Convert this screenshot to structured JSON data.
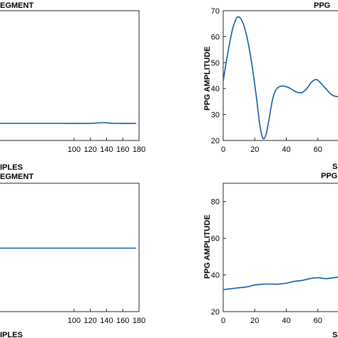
{
  "colors": {
    "series": "#0e5ca8",
    "axis": "#262626"
  },
  "chart_data": [
    {
      "type": "line",
      "title": "EGMENT",
      "xlabel": "IPLES",
      "ylabel": "",
      "xlim": [
        0,
        180
      ],
      "xticks": [
        100,
        120,
        140,
        160,
        180
      ],
      "yticks": [],
      "grid": false,
      "series": [
        {
          "x": [
            0,
            40,
            80,
            120,
            135,
            150,
            176
          ],
          "y": [
            0,
            0,
            0,
            0,
            0.01,
            0,
            0
          ]
        }
      ]
    },
    {
      "type": "line",
      "title": "PPG",
      "xlabel": "S",
      "ylabel": "PPG AMPLITUDE",
      "xlim": [
        0,
        80
      ],
      "ylim": [
        20,
        70
      ],
      "xticks": [
        0,
        20,
        40,
        60
      ],
      "yticks": [
        20,
        30,
        40,
        50,
        60,
        70
      ],
      "grid": false,
      "series": [
        {
          "x": [
            0,
            3,
            6,
            9,
            12,
            15,
            18,
            21,
            23,
            25,
            27,
            29,
            31,
            33,
            35,
            38,
            41,
            44,
            47,
            50,
            53,
            56,
            59,
            62,
            65,
            68,
            71,
            74,
            77,
            80
          ],
          "y": [
            43,
            54,
            63,
            67.5,
            66,
            60,
            50,
            37,
            27,
            21,
            22,
            28,
            35,
            39,
            40.5,
            41,
            40.5,
            39.5,
            38.5,
            38.5,
            40,
            42.5,
            43.5,
            42,
            40,
            38,
            37,
            37,
            37.5,
            37.5
          ]
        }
      ]
    },
    {
      "type": "line",
      "title": "EGMENT",
      "xlabel": "IPLES",
      "ylabel": "",
      "xlim": [
        0,
        180
      ],
      "xticks": [
        100,
        120,
        140,
        160,
        180
      ],
      "yticks": [],
      "grid": false,
      "series": [
        {
          "x": [
            0,
            40,
            80,
            120,
            150,
            176
          ],
          "y": [
            0,
            0,
            0,
            0,
            0,
            0
          ]
        }
      ]
    },
    {
      "type": "line",
      "title": "PPG",
      "xlabel": "S",
      "ylabel": "PPG AMPLITUDE",
      "xlim": [
        0,
        80
      ],
      "ylim": [
        20,
        90
      ],
      "xticks": [
        0,
        20,
        40,
        60
      ],
      "yticks": [
        20,
        40,
        60,
        80
      ],
      "grid": false,
      "series": [
        {
          "x": [
            0,
            5,
            10,
            15,
            20,
            25,
            30,
            35,
            40,
            45,
            50,
            55,
            60,
            65,
            70,
            75,
            80
          ],
          "y": [
            32,
            32.5,
            33,
            33.5,
            34.5,
            35,
            35,
            35,
            35.5,
            36.5,
            37,
            38,
            38.5,
            38,
            38.5,
            39,
            39.5
          ]
        }
      ]
    }
  ]
}
